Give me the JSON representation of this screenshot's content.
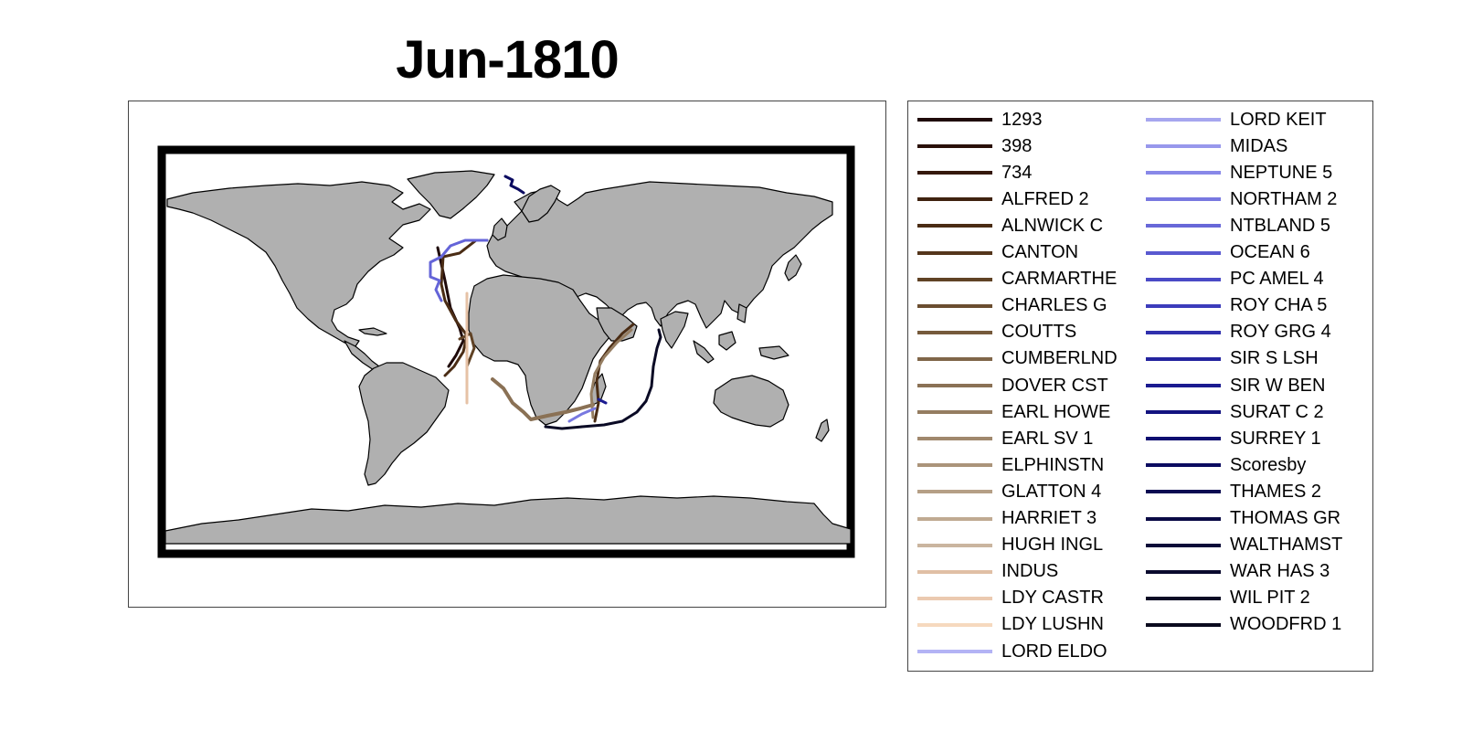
{
  "title": "Jun-1810",
  "map": {
    "land_color": "#b0b0b0",
    "coast_color": "#000000",
    "frame_color": "#000000",
    "background": "#ffffff"
  },
  "legend": {
    "columns": [
      [
        {
          "name": "1293",
          "color": "#1f0a0a"
        },
        {
          "name": "398",
          "color": "#2a1008"
        },
        {
          "name": "734",
          "color": "#35180c"
        },
        {
          "name": "ALFRED 2",
          "color": "#3f220f"
        },
        {
          "name": "ALNWICK C",
          "color": "#4a2c14"
        },
        {
          "name": "CANTON",
          "color": "#55361c"
        },
        {
          "name": "CARMARTHE",
          "color": "#604225"
        },
        {
          "name": "CHARLES G",
          "color": "#6b4e30"
        },
        {
          "name": "COUTTS",
          "color": "#765a3c"
        },
        {
          "name": "CUMBERLND",
          "color": "#806649"
        },
        {
          "name": "DOVER CST",
          "color": "#8a7155"
        },
        {
          "name": "EARL HOWE",
          "color": "#957d61"
        },
        {
          "name": "EARL SV 1",
          "color": "#a0886d"
        },
        {
          "name": "ELPHINSTN",
          "color": "#ab947a"
        },
        {
          "name": "GLATTON 4",
          "color": "#b59f86"
        },
        {
          "name": "HARRIET 3",
          "color": "#c0aa92"
        },
        {
          "name": "HUGH INGL",
          "color": "#cab59f"
        },
        {
          "name": "INDUS",
          "color": "#e0bfa5"
        },
        {
          "name": "LDY CASTR",
          "color": "#ebcab0"
        },
        {
          "name": "LDY LUSHN",
          "color": "#f6d9be"
        },
        {
          "name": "LORD ELDO",
          "color": "#b3b3f5"
        }
      ],
      [
        {
          "name": "LORD KEIT",
          "color": "#a6a6ef"
        },
        {
          "name": "MIDAS",
          "color": "#9898ec"
        },
        {
          "name": "NEPTUNE 5",
          "color": "#8888e8"
        },
        {
          "name": "NORTHAM 2",
          "color": "#7878e0"
        },
        {
          "name": "NTBLAND 5",
          "color": "#6868d8"
        },
        {
          "name": "OCEAN 6",
          "color": "#5959d0"
        },
        {
          "name": "PC AMEL 4",
          "color": "#4a4ac6"
        },
        {
          "name": "ROY CHA 5",
          "color": "#3c3cbb"
        },
        {
          "name": "ROY GRG 4",
          "color": "#3030ad"
        },
        {
          "name": "SIR S LSH",
          "color": "#24249f"
        },
        {
          "name": "SIR W BEN",
          "color": "#1b1b90"
        },
        {
          "name": "SURAT C 2",
          "color": "#131380"
        },
        {
          "name": "SURREY 1",
          "color": "#0e0e70"
        },
        {
          "name": "Scoresby",
          "color": "#0b0b60"
        },
        {
          "name": "THAMES 2",
          "color": "#0a0a52"
        },
        {
          "name": "THOMAS GR",
          "color": "#0a0a45"
        },
        {
          "name": "WALTHAMST",
          "color": "#0a0a38"
        },
        {
          "name": "WAR HAS 3",
          "color": "#0a0a2e"
        },
        {
          "name": "WIL PIT 2",
          "color": "#0a0a25"
        },
        {
          "name": "WOODFRD 1",
          "color": "#0a0a1e"
        }
      ]
    ]
  }
}
